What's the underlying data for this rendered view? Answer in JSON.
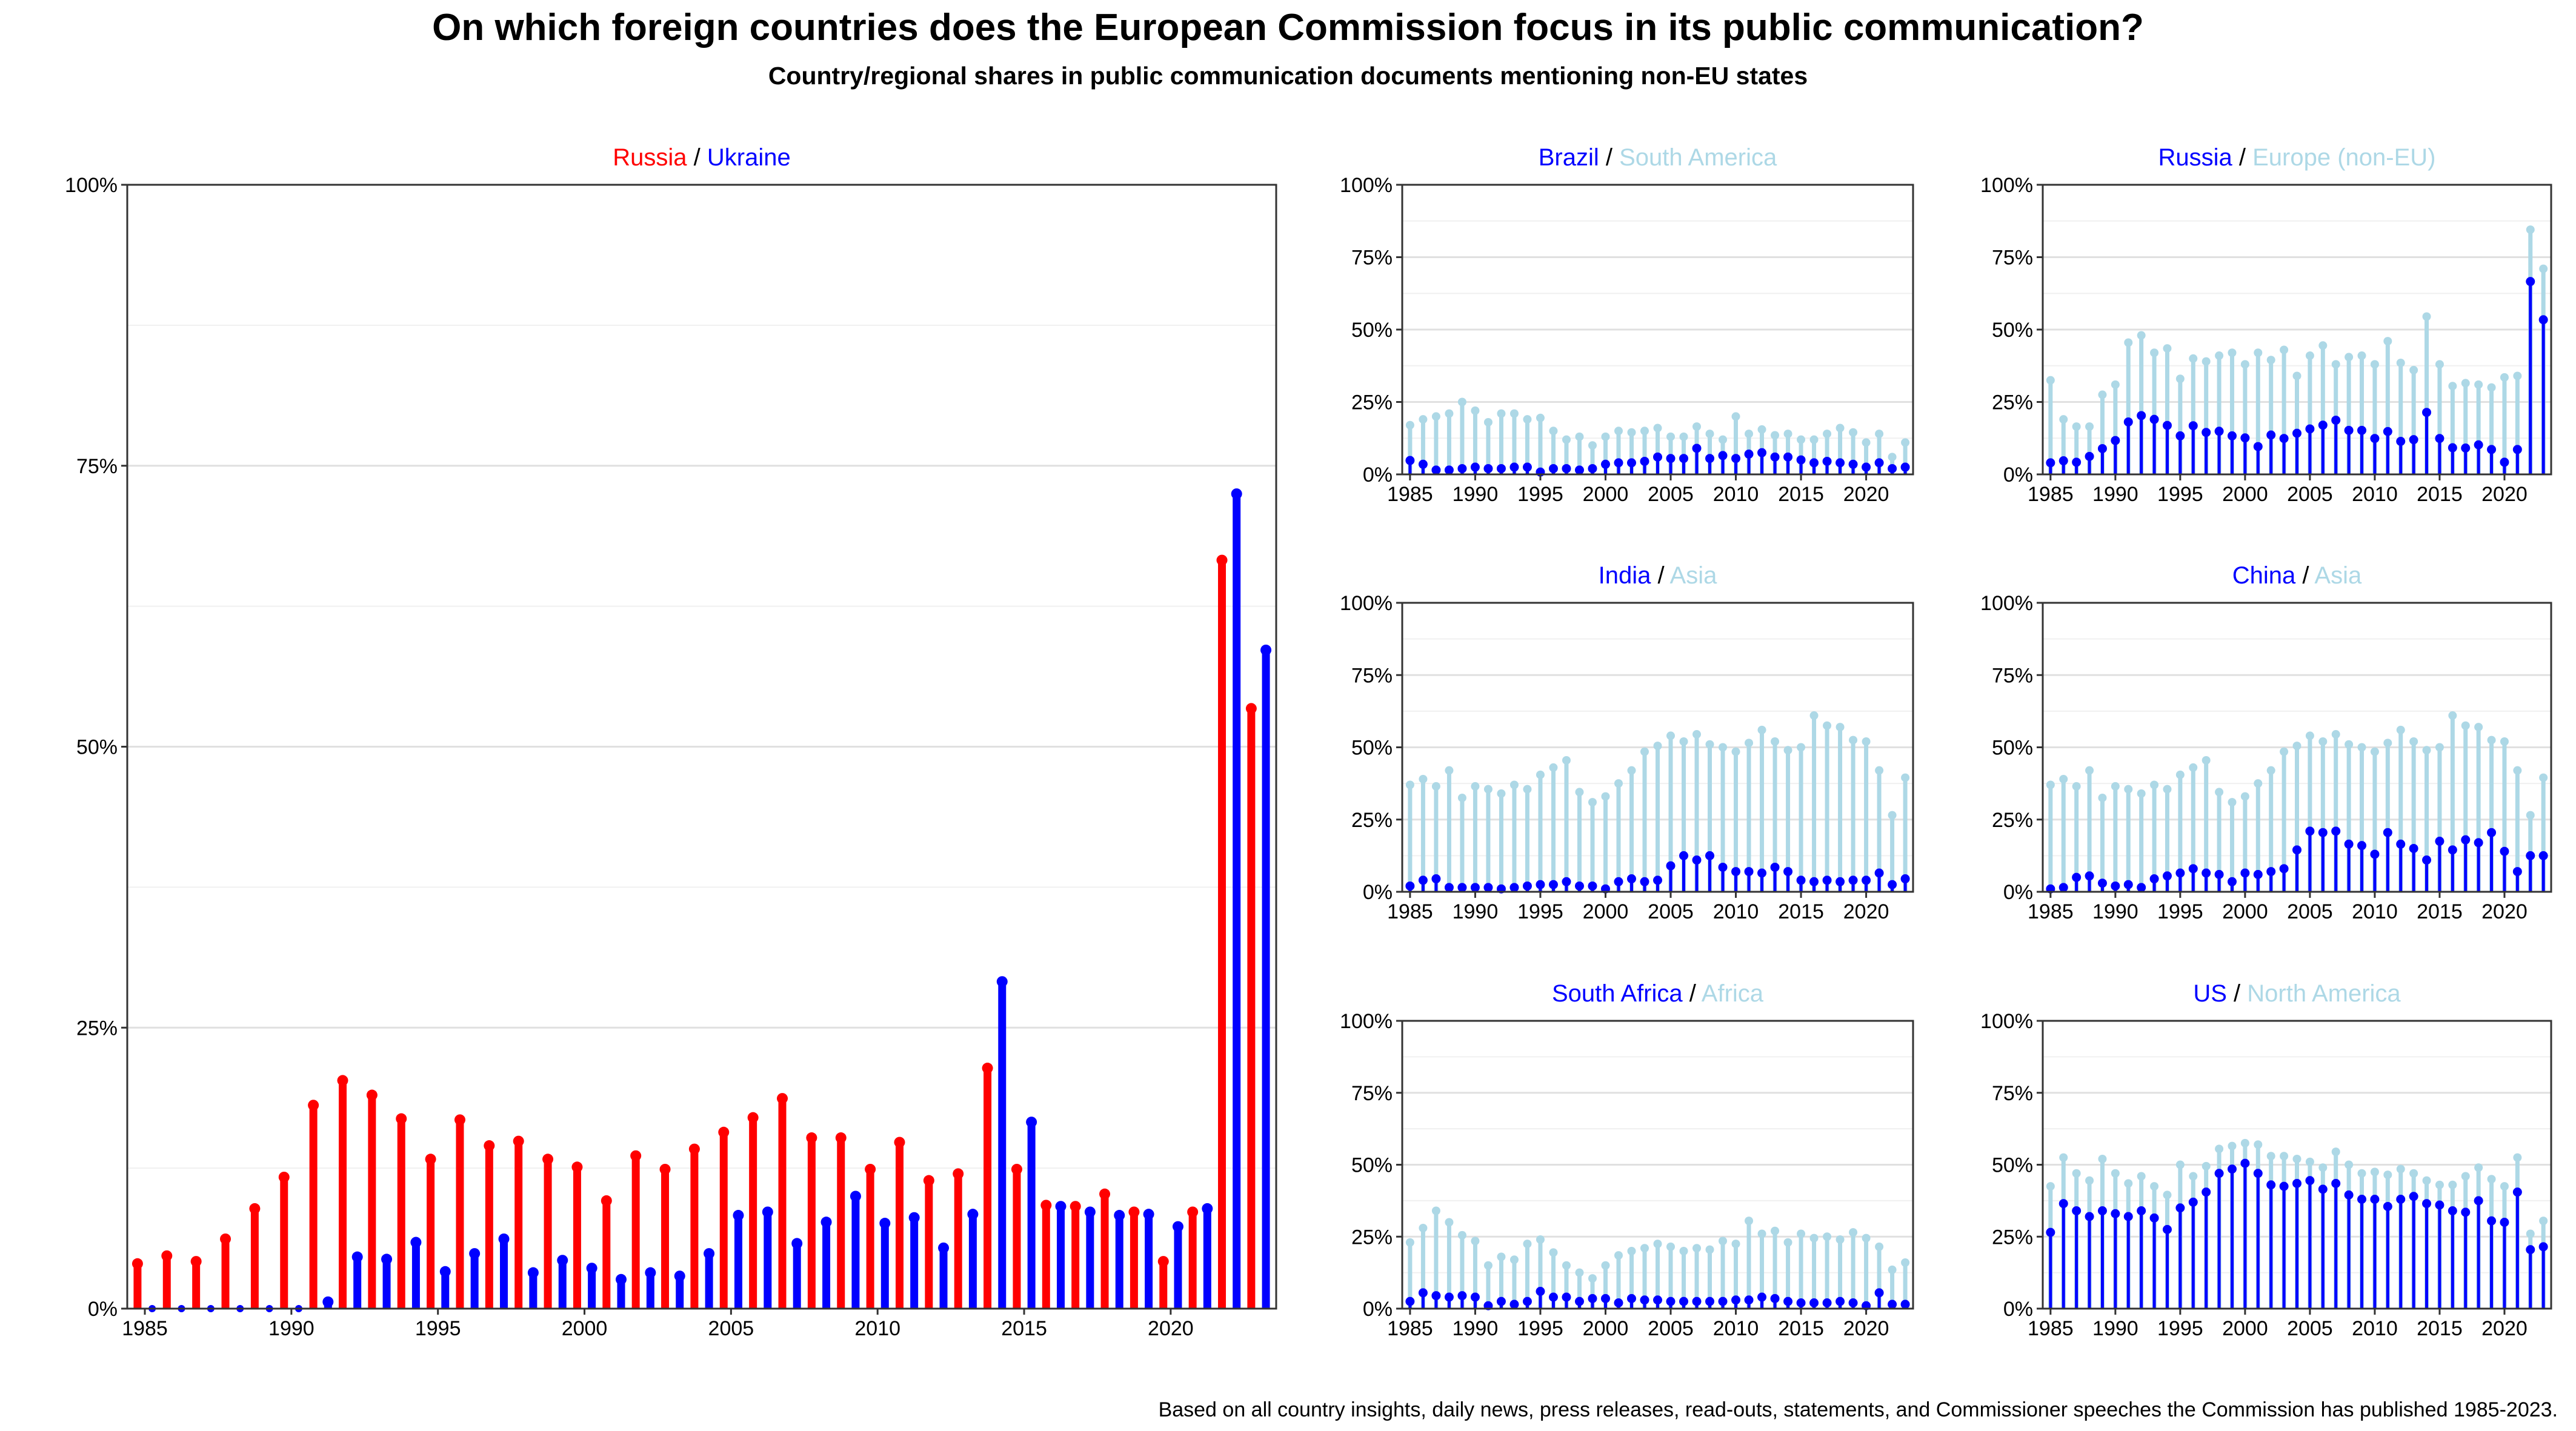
{
  "title": "On which foreign countries does the European Commission focus in its public communication?",
  "subtitle": "Country/regional shares in public communication documents mentioning non-EU states",
  "caption": "Based on all country insights, daily news, press releases, read-outs, statements, and Commissioner speeches the Commission has published 1985-2023.",
  "colors": {
    "red": "#ff0000",
    "blue": "#0000ff",
    "lightblue": "#add8e6"
  },
  "chart_data": [
    {
      "type": "bar",
      "title_parts": [
        {
          "text": "Russia",
          "color": "red"
        },
        {
          "text": " / ",
          "color": "black"
        },
        {
          "text": "Ukraine",
          "color": "blue"
        }
      ],
      "x": [
        1985,
        1986,
        1987,
        1988,
        1989,
        1990,
        1991,
        1992,
        1993,
        1994,
        1995,
        1996,
        1997,
        1998,
        1999,
        2000,
        2001,
        2002,
        2003,
        2004,
        2005,
        2006,
        2007,
        2008,
        2009,
        2010,
        2011,
        2012,
        2013,
        2014,
        2015,
        2016,
        2017,
        2018,
        2019,
        2020,
        2021,
        2022,
        2023
      ],
      "xticks": [
        "1985",
        "1990",
        "1995",
        "2000",
        "2005",
        "2010",
        "2015",
        "2020"
      ],
      "yticks": [
        "0%",
        "25%",
        "50%",
        "75%",
        "100%"
      ],
      "ylim": [
        0,
        100
      ],
      "grid": true,
      "series": [
        {
          "name": "Russia",
          "color": "red",
          "values": [
            4,
            4.7,
            4.2,
            6.2,
            8.9,
            11.7,
            18.1,
            20.3,
            19,
            16.9,
            13.3,
            16.8,
            14.5,
            14.9,
            13.3,
            12.6,
            9.6,
            13.6,
            12.4,
            14.2,
            15.7,
            17,
            18.7,
            15.2,
            15.2,
            12.4,
            14.8,
            11.4,
            12,
            21.4,
            12.4,
            9.2,
            9.1,
            10.2,
            8.6,
            4.2,
            8.6,
            66.6,
            53.4
          ]
        },
        {
          "name": "Ukraine",
          "color": "blue",
          "values": [
            0,
            0,
            0,
            0,
            0,
            0,
            0.6,
            4.6,
            4.4,
            5.9,
            3.3,
            4.9,
            6.2,
            3.2,
            4.3,
            3.6,
            2.6,
            3.2,
            2.9,
            4.9,
            8.3,
            8.6,
            5.8,
            7.7,
            10,
            7.6,
            8.1,
            5.4,
            8.4,
            29.1,
            16.6,
            9.1,
            8.6,
            8.3,
            8.4,
            7.3,
            8.9,
            72.5,
            58.6
          ]
        }
      ]
    },
    {
      "type": "bar",
      "title_parts": [
        {
          "text": "Brazil",
          "color": "blue"
        },
        {
          "text": " / ",
          "color": "black"
        },
        {
          "text": "South America",
          "color": "lightblue"
        }
      ],
      "x": [
        1985,
        1986,
        1987,
        1988,
        1989,
        1990,
        1991,
        1992,
        1993,
        1994,
        1995,
        1996,
        1997,
        1998,
        1999,
        2000,
        2001,
        2002,
        2003,
        2004,
        2005,
        2006,
        2007,
        2008,
        2009,
        2010,
        2011,
        2012,
        2013,
        2014,
        2015,
        2016,
        2017,
        2018,
        2019,
        2020,
        2021,
        2022,
        2023
      ],
      "xticks": [
        "1985",
        "1990",
        "1995",
        "2000",
        "2005",
        "2010",
        "2015",
        "2020"
      ],
      "yticks": [
        "0%",
        "25%",
        "50%",
        "75%",
        "100%"
      ],
      "ylim": [
        0,
        100
      ],
      "series": [
        {
          "name": "Brazil",
          "color": "blue",
          "values": [
            4.8,
            3.5,
            1.5,
            1.5,
            2,
            2.5,
            2,
            2,
            2.5,
            2.5,
            0.8,
            2,
            2,
            1.5,
            2,
            3.5,
            4,
            4,
            4.5,
            6,
            5.5,
            5.5,
            9,
            5.5,
            6.5,
            5.5,
            7,
            7.5,
            6,
            6,
            5,
            4,
            4.5,
            4,
            3.5,
            2.5,
            4,
            2,
            2.5
          ]
        },
        {
          "name": "South America",
          "color": "lightblue",
          "values": [
            17,
            19,
            20,
            21,
            25,
            22,
            18,
            21,
            21,
            19,
            19.5,
            15,
            12,
            13,
            10,
            13,
            15,
            14.5,
            15,
            16,
            13,
            13,
            16.5,
            14,
            12,
            20,
            14,
            15.5,
            13.5,
            14,
            12,
            12,
            14,
            16,
            14.5,
            11,
            14,
            6,
            11
          ]
        }
      ]
    },
    {
      "type": "bar",
      "title_parts": [
        {
          "text": "Russia",
          "color": "blue"
        },
        {
          "text": " / ",
          "color": "black"
        },
        {
          "text": "Europe (non-EU)",
          "color": "lightblue"
        }
      ],
      "x": [
        1985,
        1986,
        1987,
        1988,
        1989,
        1990,
        1991,
        1992,
        1993,
        1994,
        1995,
        1996,
        1997,
        1998,
        1999,
        2000,
        2001,
        2002,
        2003,
        2004,
        2005,
        2006,
        2007,
        2008,
        2009,
        2010,
        2011,
        2012,
        2013,
        2014,
        2015,
        2016,
        2017,
        2018,
        2019,
        2020,
        2021,
        2022,
        2023
      ],
      "xticks": [
        "1985",
        "1990",
        "1995",
        "2000",
        "2005",
        "2010",
        "2015",
        "2020"
      ],
      "yticks": [
        "0%",
        "25%",
        "50%",
        "75%",
        "100%"
      ],
      "ylim": [
        0,
        100
      ],
      "series": [
        {
          "name": "Russia",
          "color": "blue",
          "values": [
            4,
            4.7,
            4.2,
            6.2,
            8.9,
            11.7,
            18.1,
            20.3,
            19,
            16.9,
            13.3,
            16.8,
            14.5,
            14.9,
            13.3,
            12.6,
            9.6,
            13.6,
            12.4,
            14.2,
            15.7,
            17,
            18.7,
            15.2,
            15.2,
            12.4,
            14.8,
            11.4,
            12,
            21.4,
            12.4,
            9.2,
            9.1,
            10.2,
            8.6,
            4.2,
            8.6,
            66.6,
            53.4
          ]
        },
        {
          "name": "Europe (non-EU)",
          "color": "lightblue",
          "values": [
            32.5,
            19,
            16.5,
            16.5,
            27.5,
            31,
            45.5,
            48,
            42,
            43.5,
            33,
            40,
            39,
            41,
            42,
            38,
            42,
            39.5,
            43,
            34,
            41,
            44.5,
            38,
            40.5,
            41,
            38,
            46,
            38.5,
            36,
            54.5,
            38,
            30.5,
            31.5,
            31,
            30,
            33.5,
            34,
            84.5,
            71
          ]
        }
      ]
    },
    {
      "type": "bar",
      "title_parts": [
        {
          "text": "India",
          "color": "blue"
        },
        {
          "text": " / ",
          "color": "black"
        },
        {
          "text": "Asia",
          "color": "lightblue"
        }
      ],
      "x": [
        1985,
        1986,
        1987,
        1988,
        1989,
        1990,
        1991,
        1992,
        1993,
        1994,
        1995,
        1996,
        1997,
        1998,
        1999,
        2000,
        2001,
        2002,
        2003,
        2004,
        2005,
        2006,
        2007,
        2008,
        2009,
        2010,
        2011,
        2012,
        2013,
        2014,
        2015,
        2016,
        2017,
        2018,
        2019,
        2020,
        2021,
        2022,
        2023
      ],
      "xticks": [
        "1985",
        "1990",
        "1995",
        "2000",
        "2005",
        "2010",
        "2015",
        "2020"
      ],
      "yticks": [
        "0%",
        "25%",
        "50%",
        "75%",
        "100%"
      ],
      "ylim": [
        0,
        100
      ],
      "series": [
        {
          "name": "India",
          "color": "blue",
          "values": [
            2,
            4,
            4.5,
            1.5,
            1.5,
            1.5,
            1.5,
            1,
            1.5,
            2,
            2.5,
            2.5,
            3.5,
            2,
            2,
            1,
            3.5,
            4.5,
            3.5,
            4,
            9,
            12.5,
            11,
            12.5,
            8.5,
            7,
            7,
            6.5,
            8.5,
            7,
            4,
            3.5,
            4,
            3.5,
            4,
            4,
            6.5,
            2.5,
            4.5
          ]
        },
        {
          "name": "Asia",
          "color": "lightblue",
          "values": [
            37,
            39,
            36.5,
            42,
            32.5,
            36.5,
            35.5,
            34,
            37,
            35.5,
            40.5,
            43,
            45.5,
            34.5,
            31,
            33,
            37.5,
            42,
            48.5,
            50.5,
            54,
            52,
            54.5,
            51,
            50,
            48.5,
            51.5,
            56,
            52,
            49,
            50,
            61,
            57.5,
            57,
            52.5,
            52,
            42,
            26.5,
            39.5
          ]
        }
      ]
    },
    {
      "type": "bar",
      "title_parts": [
        {
          "text": "China",
          "color": "blue"
        },
        {
          "text": " / ",
          "color": "black"
        },
        {
          "text": "Asia",
          "color": "lightblue"
        }
      ],
      "x": [
        1985,
        1986,
        1987,
        1988,
        1989,
        1990,
        1991,
        1992,
        1993,
        1994,
        1995,
        1996,
        1997,
        1998,
        1999,
        2000,
        2001,
        2002,
        2003,
        2004,
        2005,
        2006,
        2007,
        2008,
        2009,
        2010,
        2011,
        2012,
        2013,
        2014,
        2015,
        2016,
        2017,
        2018,
        2019,
        2020,
        2021,
        2022,
        2023
      ],
      "xticks": [
        "1985",
        "1990",
        "1995",
        "2000",
        "2005",
        "2010",
        "2015",
        "2020"
      ],
      "yticks": [
        "0%",
        "25%",
        "50%",
        "75%",
        "100%"
      ],
      "ylim": [
        0,
        100
      ],
      "series": [
        {
          "name": "China",
          "color": "blue",
          "values": [
            1,
            1.5,
            5,
            5.5,
            3,
            2,
            2.5,
            1.5,
            4.5,
            5.5,
            6.5,
            8,
            6.5,
            6,
            3.5,
            6.5,
            6,
            7,
            8,
            14.5,
            21,
            20.5,
            21,
            16.5,
            16,
            13,
            20.5,
            16.5,
            15,
            11,
            17.5,
            14.5,
            18,
            17,
            20.5,
            14,
            7,
            12.5,
            12.5
          ]
        },
        {
          "name": "Asia",
          "color": "lightblue",
          "values": [
            37,
            39,
            36.5,
            42,
            32.5,
            36.5,
            35.5,
            34,
            37,
            35.5,
            40.5,
            43,
            45.5,
            34.5,
            31,
            33,
            37.5,
            42,
            48.5,
            50.5,
            54,
            52,
            54.5,
            51,
            50,
            48.5,
            51.5,
            56,
            52,
            49,
            50,
            61,
            57.5,
            57,
            52.5,
            52,
            42,
            26.5,
            39.5
          ]
        }
      ]
    },
    {
      "type": "bar",
      "title_parts": [
        {
          "text": "South Africa",
          "color": "blue"
        },
        {
          "text": " / ",
          "color": "black"
        },
        {
          "text": "Africa",
          "color": "lightblue"
        }
      ],
      "x": [
        1985,
        1986,
        1987,
        1988,
        1989,
        1990,
        1991,
        1992,
        1993,
        1994,
        1995,
        1996,
        1997,
        1998,
        1999,
        2000,
        2001,
        2002,
        2003,
        2004,
        2005,
        2006,
        2007,
        2008,
        2009,
        2010,
        2011,
        2012,
        2013,
        2014,
        2015,
        2016,
        2017,
        2018,
        2019,
        2020,
        2021,
        2022,
        2023
      ],
      "xticks": [
        "1985",
        "1990",
        "1995",
        "2000",
        "2005",
        "2010",
        "2015",
        "2020"
      ],
      "yticks": [
        "0%",
        "25%",
        "50%",
        "75%",
        "100%"
      ],
      "ylim": [
        0,
        100
      ],
      "series": [
        {
          "name": "South Africa",
          "color": "blue",
          "values": [
            2.5,
            5.5,
            4.5,
            4,
            4.5,
            4,
            1,
            2.5,
            1.5,
            2.5,
            6,
            4,
            4,
            2.5,
            3.5,
            3.5,
            2,
            3.5,
            3,
            3,
            2.5,
            2.5,
            2.5,
            2.5,
            2.5,
            3,
            3,
            4,
            3.5,
            2.5,
            2,
            2,
            2,
            2.5,
            2,
            1,
            5.5,
            1.5,
            1.5
          ]
        },
        {
          "name": "Africa",
          "color": "lightblue",
          "values": [
            23,
            28,
            34,
            30,
            25.5,
            23.5,
            15,
            18,
            17,
            22.5,
            24,
            19.5,
            15,
            12.5,
            10.5,
            15,
            18.5,
            20,
            21,
            22.5,
            21.5,
            20,
            21,
            20.5,
            23.5,
            22.5,
            30.5,
            26,
            27,
            23,
            26,
            24.5,
            25,
            24,
            26.5,
            24.5,
            21.5,
            13.5,
            16
          ]
        }
      ]
    },
    {
      "type": "bar",
      "title_parts": [
        {
          "text": "US",
          "color": "blue"
        },
        {
          "text": " / ",
          "color": "black"
        },
        {
          "text": "North America",
          "color": "lightblue"
        }
      ],
      "x": [
        1985,
        1986,
        1987,
        1988,
        1989,
        1990,
        1991,
        1992,
        1993,
        1994,
        1995,
        1996,
        1997,
        1998,
        1999,
        2000,
        2001,
        2002,
        2003,
        2004,
        2005,
        2006,
        2007,
        2008,
        2009,
        2010,
        2011,
        2012,
        2013,
        2014,
        2015,
        2016,
        2017,
        2018,
        2019,
        2020,
        2021,
        2022,
        2023
      ],
      "xticks": [
        "1985",
        "1990",
        "1995",
        "2000",
        "2005",
        "2010",
        "2015",
        "2020"
      ],
      "yticks": [
        "0%",
        "25%",
        "50%",
        "75%",
        "100%"
      ],
      "ylim": [
        0,
        100
      ],
      "series": [
        {
          "name": "US",
          "color": "blue",
          "values": [
            26.5,
            36.5,
            34,
            32,
            34,
            33,
            32,
            34,
            31.5,
            27.5,
            35,
            37,
            40.5,
            47,
            48.5,
            50.5,
            47,
            43,
            42.5,
            43.5,
            44.5,
            41.5,
            43.5,
            39.5,
            38,
            38,
            35.5,
            38,
            39,
            36.5,
            36,
            34,
            33.5,
            37.5,
            30.5,
            30,
            40.5,
            20.5,
            21.5
          ]
        },
        {
          "name": "North America",
          "color": "lightblue",
          "values": [
            42.5,
            52.5,
            47,
            44.5,
            52,
            47,
            43.5,
            46,
            42.5,
            39.5,
            50,
            46,
            49.5,
            55.5,
            56.5,
            57.5,
            57,
            53,
            53,
            52,
            51,
            49,
            54.5,
            50,
            47,
            47.5,
            46.5,
            48.5,
            47,
            44.5,
            43,
            43,
            46,
            49,
            45,
            42.5,
            52.5,
            26,
            30.5
          ]
        }
      ]
    }
  ]
}
